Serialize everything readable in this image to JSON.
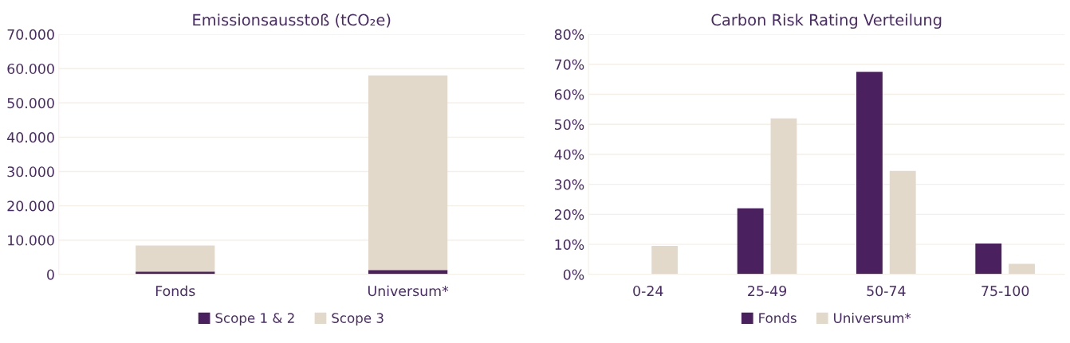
{
  "chart_data": [
    {
      "type": "bar",
      "title": "Emissionsausstoß (tCO₂e)",
      "stacked": true,
      "categories": [
        "Fonds",
        "Universum*"
      ],
      "series": [
        {
          "name": "Scope 1 & 2",
          "color": "#4a205e",
          "values": [
            800,
            1300
          ]
        },
        {
          "name": "Scope 3",
          "color": "#e3d9cb",
          "values": [
            7600,
            56700
          ]
        }
      ],
      "ylim": [
        0,
        70000
      ],
      "yticks": [
        {
          "value": 0,
          "label": "0"
        },
        {
          "value": 10000,
          "label": "10.000"
        },
        {
          "value": 20000,
          "label": "20.000"
        },
        {
          "value": 30000,
          "label": "30.000"
        },
        {
          "value": 40000,
          "label": "40.000"
        },
        {
          "value": 50000,
          "label": "50.000"
        },
        {
          "value": 60000,
          "label": "60.000"
        },
        {
          "value": 70000,
          "label": "70.000"
        }
      ],
      "grid": "y",
      "legend": "bottom"
    },
    {
      "type": "bar",
      "title": "Carbon Risk Rating Verteilung",
      "categories": [
        "0-24",
        "25-49",
        "50-74",
        "75-100"
      ],
      "series": [
        {
          "name": "Fonds",
          "color": "#4a205e",
          "values": [
            0,
            22,
            67.5,
            10.3
          ]
        },
        {
          "name": "Universum*",
          "color": "#e3d9cb",
          "values": [
            9.5,
            52,
            34.5,
            3.5
          ]
        }
      ],
      "ylim": [
        0,
        80
      ],
      "yticks": [
        {
          "value": 0,
          "label": "0%"
        },
        {
          "value": 10,
          "label": "10%"
        },
        {
          "value": 20,
          "label": "20%"
        },
        {
          "value": 30,
          "label": "30%"
        },
        {
          "value": 40,
          "label": "40%"
        },
        {
          "value": 50,
          "label": "50%"
        },
        {
          "value": 60,
          "label": "60%"
        },
        {
          "value": 70,
          "label": "70%"
        },
        {
          "value": 80,
          "label": "80%"
        }
      ],
      "grid": "y",
      "legend": "bottom"
    }
  ]
}
